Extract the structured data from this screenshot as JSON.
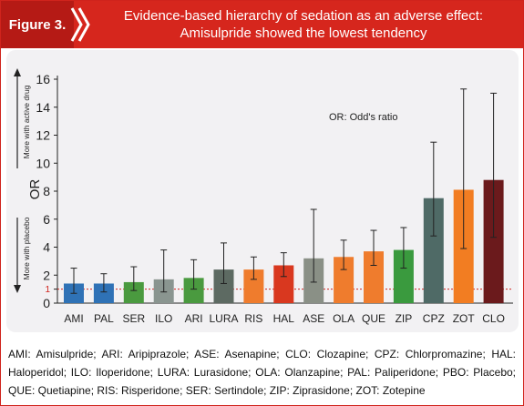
{
  "header": {
    "figure_label": "Figure 3.",
    "title_line1": "Evidence-based hierarchy of sedation as an adverse effect:",
    "title_line2": "Amisulpride showed the lowest tendency"
  },
  "chart_data": {
    "type": "bar",
    "ylabel": "OR",
    "ylim": [
      0,
      16
    ],
    "yticks": [
      "0",
      "1",
      "2",
      "4",
      "6",
      "8",
      "10",
      "12",
      "14",
      "16"
    ],
    "annotation": "OR: Odd's ratio",
    "arrow_up_label": "More with active drug",
    "arrow_down_label": "More with placebo",
    "categories": [
      "AMI",
      "PAL",
      "SER",
      "ILO",
      "ARI",
      "LURA",
      "RIS",
      "HAL",
      "ASE",
      "OLA",
      "QUE",
      "ZIP",
      "CPZ",
      "ZOT",
      "CLO"
    ],
    "values": [
      1.4,
      1.4,
      1.5,
      1.7,
      1.8,
      2.4,
      2.4,
      2.7,
      3.2,
      3.3,
      3.7,
      3.8,
      7.5,
      8.1,
      8.8
    ],
    "ci_low": [
      0.7,
      0.8,
      0.9,
      0.8,
      1.0,
      1.4,
      1.7,
      1.9,
      1.5,
      2.4,
      2.7,
      2.5,
      4.8,
      3.9,
      4.7
    ],
    "ci_high": [
      2.5,
      2.1,
      2.6,
      3.8,
      3.1,
      4.3,
      3.3,
      3.6,
      6.7,
      4.5,
      5.2,
      5.4,
      11.5,
      15.3,
      15.0
    ],
    "colors": [
      "#2f72b6",
      "#2f72b6",
      "#4a9a3f",
      "#8a9590",
      "#4a9a3f",
      "#5d6a62",
      "#ef7c2d",
      "#d9381f",
      "#8a9086",
      "#ef7c2d",
      "#ef7c2d",
      "#3a9a3e",
      "#4f6a66",
      "#f27d22",
      "#6b1a1c"
    ],
    "grid": false
  },
  "legend": {
    "text": "AMI: Amisulpride; ARI: Aripiprazole; ASE: Asenapine; CLO: Clozapine; CPZ: Chlorpromazine; HAL: Haloperidol; ILO: Iloperidone; LURA: Lurasidone; OLA: Olanzapine; PAL: Paliperidone; PBO: Placebo; QUE: Quetiapine; RIS: Risperidone; SER: Sertindole; ZIP: Ziprasidone; ZOT: Zotepine"
  },
  "colors": {
    "header_red": "#d6261d",
    "figure_label_bg": "#b51a15",
    "plot_bg": "#f2f1f3",
    "reference_line": "#d0231c"
  }
}
